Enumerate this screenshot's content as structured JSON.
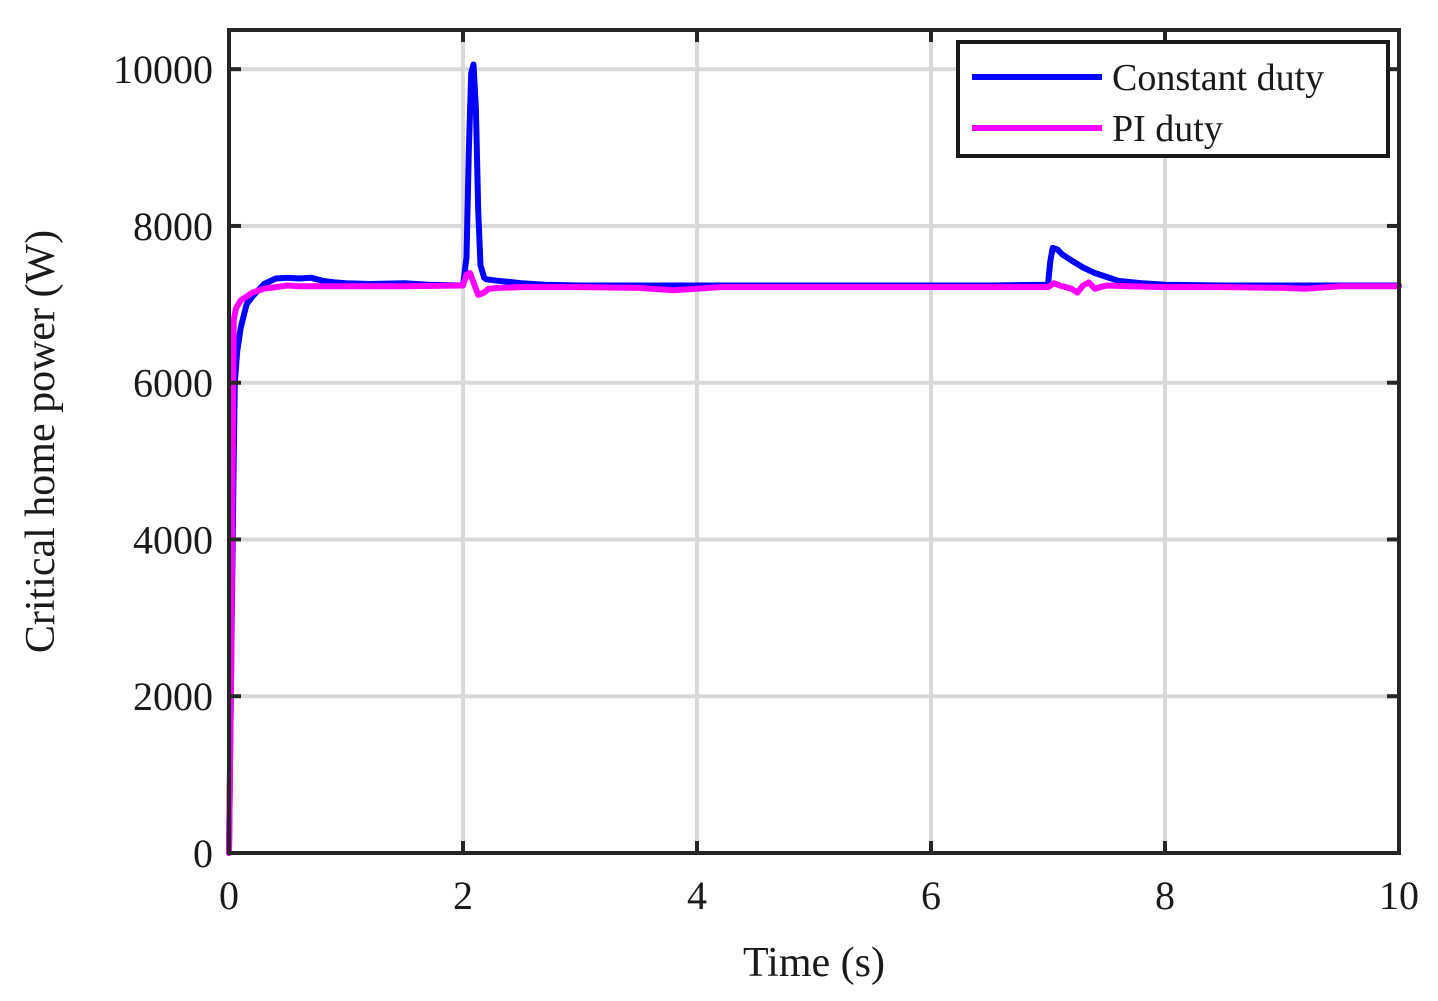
{
  "chart_data": {
    "type": "line",
    "xlabel": "Time (s)",
    "ylabel": "Critical home power (W)",
    "xlim": [
      0,
      10
    ],
    "ylim": [
      0,
      10500
    ],
    "xticks": [
      0,
      2,
      4,
      6,
      8,
      10
    ],
    "yticks": [
      0,
      2000,
      4000,
      6000,
      8000,
      10000
    ],
    "grid": true,
    "legend_position": "top-right",
    "series": [
      {
        "name": "Constant duty",
        "color": "#0000ff",
        "x": [
          0,
          0.02,
          0.04,
          0.05,
          0.07,
          0.1,
          0.15,
          0.2,
          0.3,
          0.4,
          0.5,
          0.6,
          0.7,
          0.8,
          0.9,
          1.0,
          1.2,
          1.5,
          1.7,
          2.0,
          2.03,
          2.05,
          2.07,
          2.09,
          2.11,
          2.13,
          2.15,
          2.18,
          2.2,
          2.3,
          2.5,
          2.7,
          3.0,
          3.5,
          4.0,
          5.0,
          6.0,
          6.5,
          7.0,
          7.02,
          7.04,
          7.08,
          7.12,
          7.2,
          7.3,
          7.4,
          7.5,
          7.6,
          7.8,
          8.0,
          8.5,
          9.0,
          9.5,
          10.0
        ],
        "y": [
          0,
          2500,
          5000,
          6000,
          6400,
          6700,
          7000,
          7100,
          7260,
          7330,
          7340,
          7330,
          7340,
          7300,
          7280,
          7270,
          7260,
          7270,
          7250,
          7240,
          7600,
          9000,
          9950,
          10060,
          9500,
          8200,
          7500,
          7340,
          7320,
          7300,
          7270,
          7250,
          7240,
          7240,
          7240,
          7240,
          7240,
          7240,
          7250,
          7550,
          7720,
          7700,
          7640,
          7560,
          7470,
          7400,
          7350,
          7300,
          7270,
          7250,
          7240,
          7240,
          7240,
          7240
        ]
      },
      {
        "name": "PI duty",
        "color": "#ff00ff",
        "x": [
          0,
          0.02,
          0.04,
          0.06,
          0.08,
          0.1,
          0.15,
          0.2,
          0.3,
          0.4,
          0.5,
          0.6,
          0.8,
          1.0,
          1.5,
          2.0,
          2.03,
          2.06,
          2.09,
          2.13,
          2.18,
          2.22,
          2.3,
          2.5,
          3.0,
          3.5,
          3.8,
          4.0,
          4.2,
          5.0,
          6.0,
          6.5,
          7.0,
          7.05,
          7.1,
          7.2,
          7.25,
          7.3,
          7.35,
          7.4,
          7.5,
          7.7,
          8.0,
          8.5,
          9.0,
          9.2,
          9.5,
          10.0
        ],
        "y": [
          0,
          2500,
          6800,
          6950,
          7000,
          7050,
          7100,
          7150,
          7200,
          7220,
          7240,
          7230,
          7230,
          7230,
          7230,
          7240,
          7380,
          7400,
          7280,
          7120,
          7150,
          7200,
          7210,
          7220,
          7220,
          7210,
          7180,
          7200,
          7220,
          7220,
          7220,
          7220,
          7220,
          7270,
          7240,
          7200,
          7150,
          7240,
          7280,
          7200,
          7240,
          7230,
          7220,
          7220,
          7210,
          7200,
          7230,
          7230
        ]
      }
    ]
  }
}
